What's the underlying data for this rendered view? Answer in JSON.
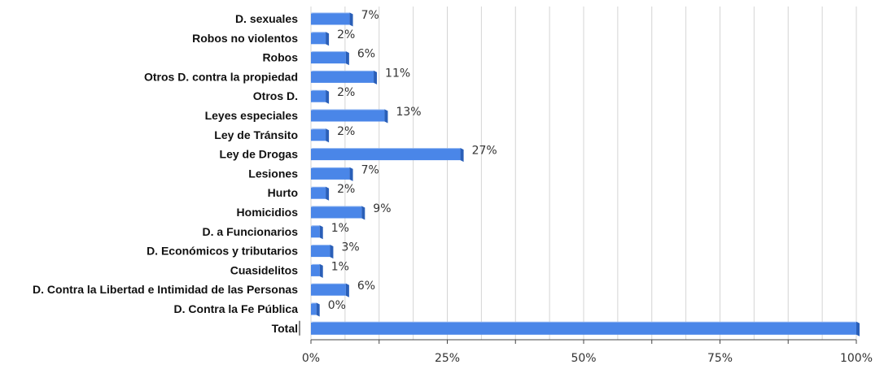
{
  "chart_data": {
    "type": "bar",
    "orientation": "horizontal",
    "categories": [
      "D. sexuales",
      "Robos no violentos",
      "Robos",
      "Otros D. contra la propiedad",
      "Otros D.",
      "Leyes especiales",
      "Ley de Tránsito",
      "Ley de Drogas",
      "Lesiones",
      "Hurto",
      "Homicidios",
      "D. a Funcionarios",
      "D. Económicos y tributarios",
      "Cuasidelitos",
      "D. Contra la Libertad e Intimidad de las Personas",
      "D. Contra la Fe Pública",
      "Total"
    ],
    "values": [
      7,
      2,
      6,
      11,
      2,
      13,
      2,
      27,
      7,
      2,
      9,
      1,
      3,
      1,
      6,
      0,
      100
    ],
    "value_labels": [
      "7%",
      "2%",
      "6%",
      "11%",
      "2%",
      "13%",
      "2%",
      "27%",
      "7%",
      "2%",
      "9%",
      "1%",
      "3%",
      "1%",
      "6%",
      "0%",
      ""
    ],
    "bar_fractions": [
      0.071,
      0.027,
      0.064,
      0.115,
      0.027,
      0.135,
      0.027,
      0.274,
      0.071,
      0.027,
      0.093,
      0.016,
      0.035,
      0.016,
      0.064,
      0.01,
      1.0
    ],
    "xlim": [
      0,
      100
    ],
    "xticks": [
      "0%",
      "25%",
      "50%",
      "75%",
      "100%"
    ],
    "xtick_values": [
      0,
      25,
      50,
      75,
      100
    ],
    "title": "",
    "xlabel": "",
    "ylabel": "",
    "grid": "vertical",
    "legend": "none",
    "colors": {
      "bar": "#4a86e8",
      "bar_dark": "#2a5fb8",
      "bar_light": "#8fb4f0"
    }
  }
}
